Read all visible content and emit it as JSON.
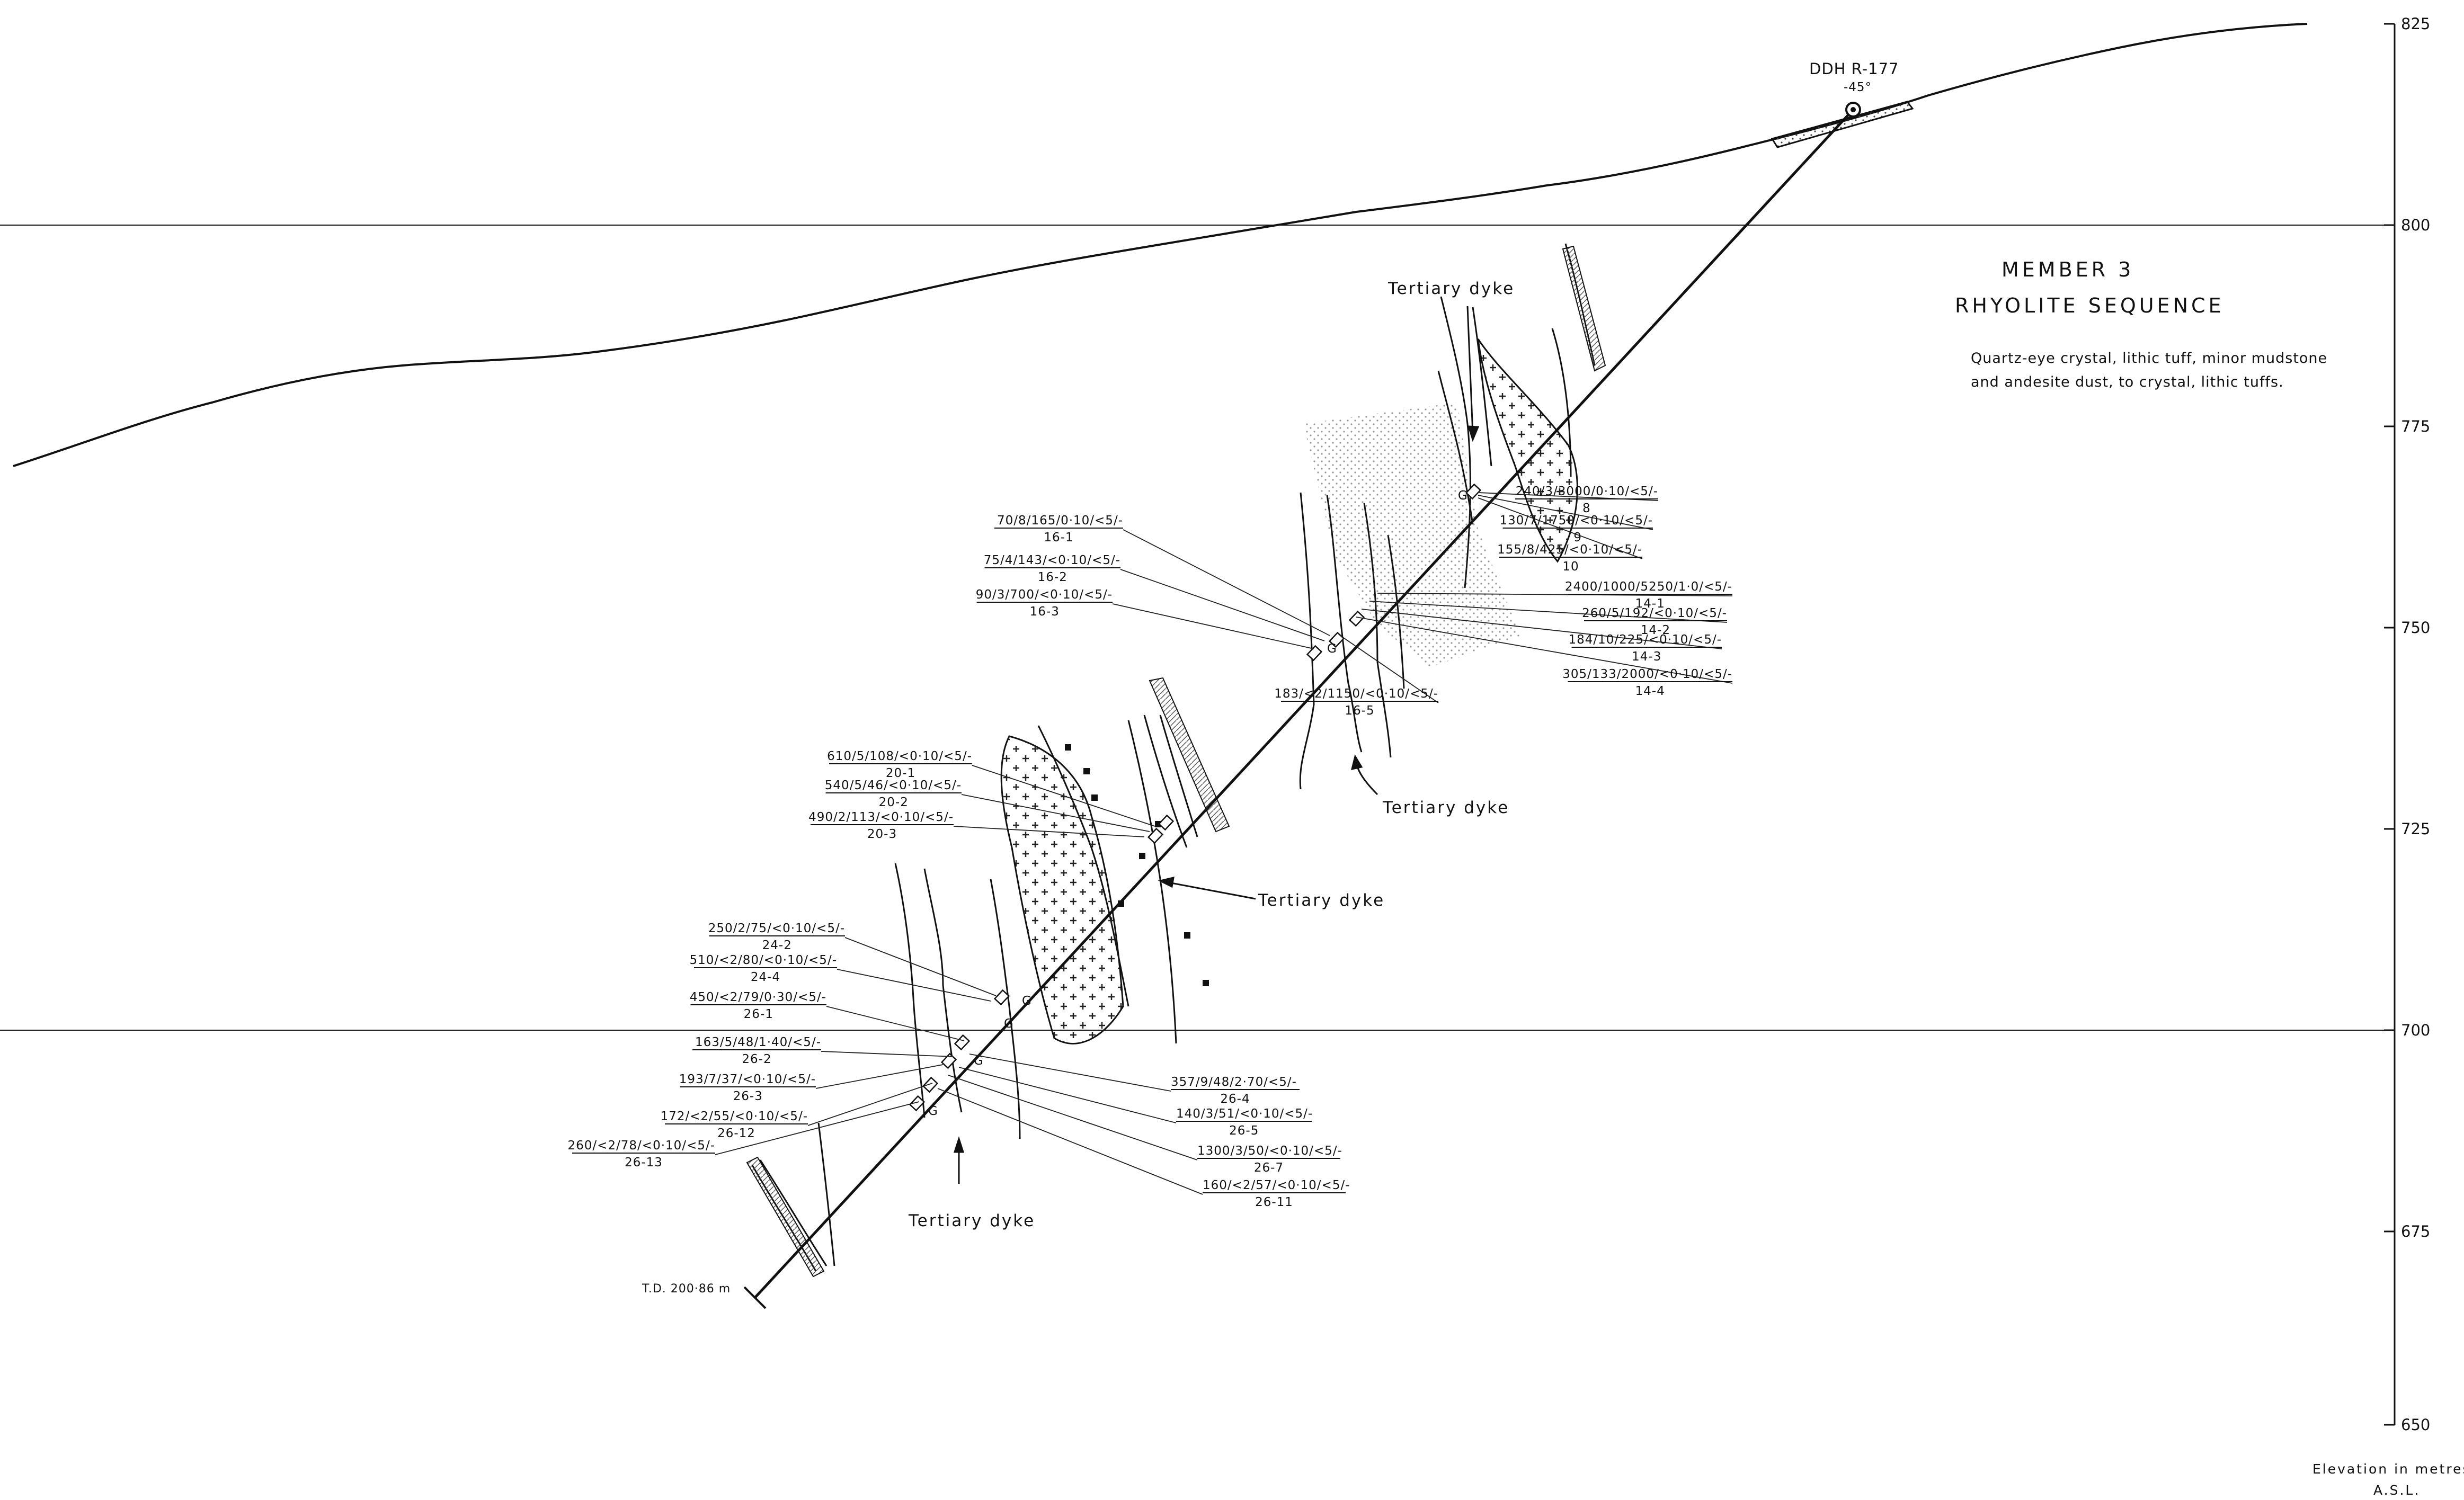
{
  "drill_hole": {
    "name": "DDH R-177",
    "inclination": "-45°",
    "total_depth": "T.D. 200·86 m"
  },
  "title": {
    "line1": "MEMBER 3",
    "line2": "RHYOLITE SEQUENCE"
  },
  "description": {
    "line1": "Quartz-eye crystal, lithic tuff, minor mudstone",
    "line2": "and andesite dust, to crystal, lithic tuffs."
  },
  "dyke_label": "Tertiary dyke",
  "elevation_axis": {
    "ticks": [
      "825",
      "800",
      "775",
      "750",
      "725",
      "700",
      "675",
      "650"
    ],
    "caption_line1": "Elevation in metres",
    "caption_line2": "A.S.L."
  },
  "sample_marker": "G",
  "assays": [
    {
      "value": "240/3/3000/0·10/<5/-",
      "sample": "8"
    },
    {
      "value": "130/7/1750/<0·10/<5/-",
      "sample": "9"
    },
    {
      "value": "155/8/425/<0·10/<5/-",
      "sample": "10"
    },
    {
      "value": "2400/1000/5250/1·0/<5/-",
      "sample": "14-1"
    },
    {
      "value": "260/5/192/<0·10/<5/-",
      "sample": "14-2"
    },
    {
      "value": "184/10/225/<0·10/<5/-",
      "sample": "14-3"
    },
    {
      "value": "305/133/2000/<0·10/<5/-",
      "sample": "14-4"
    },
    {
      "value": "183/<2/1150/<0·10/<5/-",
      "sample": "16-5"
    },
    {
      "value": "70/8/165/0·10/<5/-",
      "sample": "16-1"
    },
    {
      "value": "75/4/143/<0·10/<5/-",
      "sample": "16-2"
    },
    {
      "value": "90/3/700/<0·10/<5/-",
      "sample": "16-3"
    },
    {
      "value": "610/5/108/<0·10/<5/-",
      "sample": "20-1"
    },
    {
      "value": "540/5/46/<0·10/<5/-",
      "sample": "20-2"
    },
    {
      "value": "490/2/113/<0·10/<5/-",
      "sample": "20-3"
    },
    {
      "value": "250/2/75/<0·10/<5/-",
      "sample": "24-2"
    },
    {
      "value": "510/<2/80/<0·10/<5/-",
      "sample": "24-4"
    },
    {
      "value": "450/<2/79/0·30/<5/-",
      "sample": "26-1"
    },
    {
      "value": "163/5/48/1·40/<5/-",
      "sample": "26-2"
    },
    {
      "value": "193/7/37/<0·10/<5/-",
      "sample": "26-3"
    },
    {
      "value": "172/<2/55/<0·10/<5/-",
      "sample": "26-12"
    },
    {
      "value": "260/<2/78/<0·10/<5/-",
      "sample": "26-13"
    },
    {
      "value": "357/9/48/2·70/<5/-",
      "sample": "26-4"
    },
    {
      "value": "140/3/51/<0·10/<5/-",
      "sample": "26-5"
    },
    {
      "value": "1300/3/50/<0·10/<5/-",
      "sample": "26-7"
    },
    {
      "value": "160/<2/57/<0·10/<5/-",
      "sample": "26-11"
    }
  ]
}
